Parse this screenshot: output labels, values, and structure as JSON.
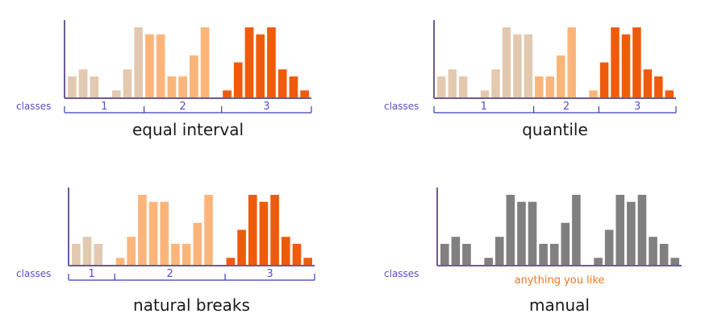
{
  "colors": {
    "axis": "#6b5b9a",
    "bracket": "#3c3cb4",
    "label": "#5a4fcf",
    "title": "#1a1a1a",
    "manual_note": "#f07820",
    "class_1": "#e2c9b0",
    "class_2": "#fbb57b",
    "class_3": "#ef5b0c",
    "manual_bar": "#808080"
  },
  "chart_data": [
    {
      "type": "bar",
      "title": "equal interval",
      "classes_label": "classes",
      "values": [
        3,
        4,
        3,
        0,
        1,
        4,
        10,
        9,
        9,
        3,
        3,
        6,
        10,
        0,
        1,
        5,
        10,
        9,
        10,
        4,
        3,
        1
      ],
      "bar_classes": [
        1,
        1,
        1,
        1,
        1,
        1,
        1,
        2,
        2,
        2,
        2,
        2,
        2,
        2,
        3,
        3,
        3,
        3,
        3,
        3,
        3,
        3
      ],
      "class_labels": [
        "1",
        "2",
        "3"
      ],
      "ylim": [
        0,
        10
      ]
    },
    {
      "type": "bar",
      "title": "quantile",
      "classes_label": "classes",
      "values": [
        3,
        4,
        3,
        0,
        1,
        4,
        10,
        9,
        9,
        3,
        3,
        6,
        10,
        0,
        1,
        5,
        10,
        9,
        10,
        4,
        3,
        1
      ],
      "bar_classes": [
        1,
        1,
        1,
        1,
        1,
        1,
        1,
        1,
        1,
        2,
        2,
        2,
        2,
        2,
        2,
        3,
        3,
        3,
        3,
        3,
        3,
        3
      ],
      "class_labels": [
        "1",
        "2",
        "3"
      ],
      "ylim": [
        0,
        10
      ]
    },
    {
      "type": "bar",
      "title": "natural breaks",
      "classes_label": "classes",
      "values": [
        3,
        4,
        3,
        0,
        1,
        4,
        10,
        9,
        9,
        3,
        3,
        6,
        10,
        0,
        1,
        5,
        10,
        9,
        10,
        4,
        3,
        1
      ],
      "bar_classes": [
        1,
        1,
        1,
        1,
        2,
        2,
        2,
        2,
        2,
        2,
        2,
        2,
        2,
        2,
        3,
        3,
        3,
        3,
        3,
        3,
        3,
        3
      ],
      "class_labels": [
        "1",
        "2",
        "3"
      ],
      "ylim": [
        0,
        10
      ]
    },
    {
      "type": "bar",
      "title": "manual",
      "classes_label": "classes",
      "note": "anything you like",
      "values": [
        3,
        4,
        3,
        0,
        1,
        4,
        10,
        9,
        9,
        3,
        3,
        6,
        10,
        0,
        1,
        5,
        10,
        9,
        10,
        4,
        3,
        1
      ],
      "bar_classes": [
        0,
        0,
        0,
        0,
        0,
        0,
        0,
        0,
        0,
        0,
        0,
        0,
        0,
        0,
        0,
        0,
        0,
        0,
        0,
        0,
        0,
        0
      ],
      "class_labels": [],
      "ylim": [
        0,
        10
      ]
    }
  ]
}
